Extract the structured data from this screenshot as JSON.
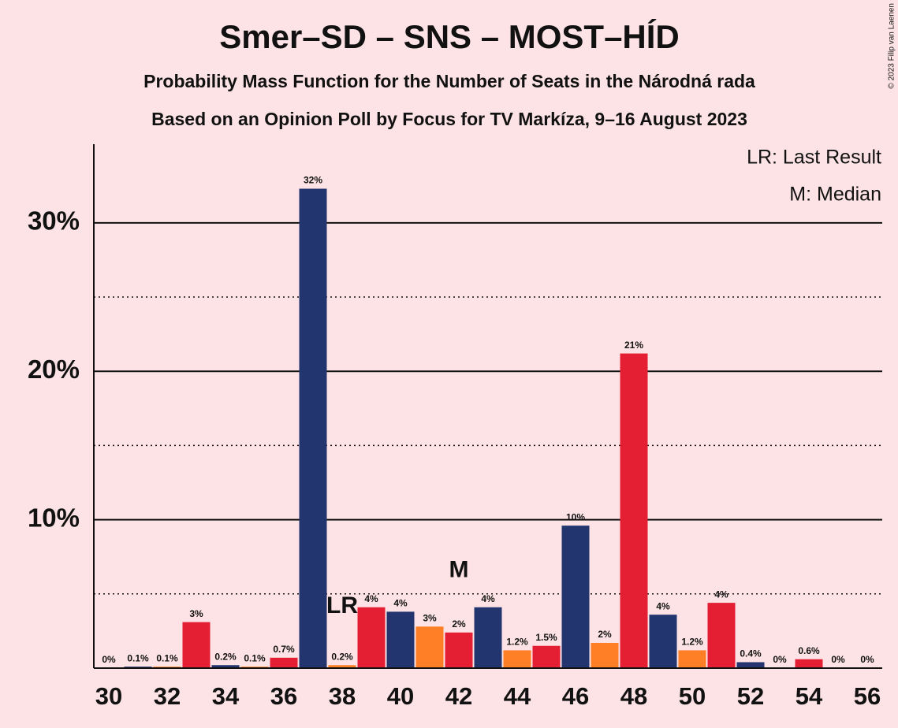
{
  "chart_data": {
    "type": "bar",
    "title": "Smer–SD – SNS – MOST–HÍD",
    "subtitle": "Probability Mass Function for the Number of Seats in the Národná rada",
    "subtitle2": "Based on an Opinion Poll by Focus for TV Markíza, 9–16 August 2023",
    "copyright": "© 2023 Filip van Laenen",
    "legend": [
      "LR: Last Result",
      "M: Median"
    ],
    "categories": [
      30,
      null,
      32,
      null,
      34,
      null,
      36,
      null,
      38,
      null,
      40,
      null,
      42,
      null,
      44,
      null,
      46,
      null,
      48,
      null,
      50,
      null,
      52,
      null,
      54,
      null,
      56
    ],
    "values": [
      0,
      0.1,
      0.1,
      3.1,
      0.2,
      0.1,
      0.7,
      32.3,
      0.2,
      4.1,
      3.8,
      2.8,
      2.4,
      4.1,
      1.2,
      1.5,
      9.6,
      1.7,
      21.2,
      3.6,
      1.2,
      4.4,
      0.4,
      0,
      0.6,
      0,
      0
    ],
    "value_labels": [
      "0%",
      "0.1%",
      "0.1%",
      "3%",
      "0.2%",
      "0.1%",
      "0.7%",
      "32%",
      "0.2%",
      "4%",
      "4%",
      "3%",
      "2%",
      "4%",
      "1.2%",
      "1.5%",
      "10%",
      "2%",
      "21%",
      "4%",
      "1.2%",
      "4%",
      "0.4%",
      "0%",
      "0.6%",
      "0%",
      "0%"
    ],
    "colors": [
      "#e41e33",
      "#22356f",
      "#ff7f27",
      "#e41e33",
      "#22356f",
      "#ff7f27",
      "#e41e33",
      "#22356f",
      "#ff7f27",
      "#e41e33",
      "#22356f",
      "#ff7f27",
      "#e41e33",
      "#22356f",
      "#ff7f27",
      "#e41e33",
      "#22356f",
      "#ff7f27",
      "#e41e33",
      "#22356f",
      "#ff7f27",
      "#e41e33",
      "#22356f",
      "#ff7f27",
      "#e41e33",
      "#22356f",
      "#ff7f27"
    ],
    "annotations": [
      {
        "text": "LR",
        "at": 38
      },
      {
        "text": "M",
        "at": 42
      }
    ],
    "ylim": [
      0,
      35.3
    ],
    "yticks": [
      {
        "value": 10,
        "label": "10%"
      },
      {
        "value": 20,
        "label": "20%"
      },
      {
        "value": 30,
        "label": "30%"
      }
    ],
    "minor_yticks": [
      5,
      15,
      25
    ],
    "grid": true
  }
}
